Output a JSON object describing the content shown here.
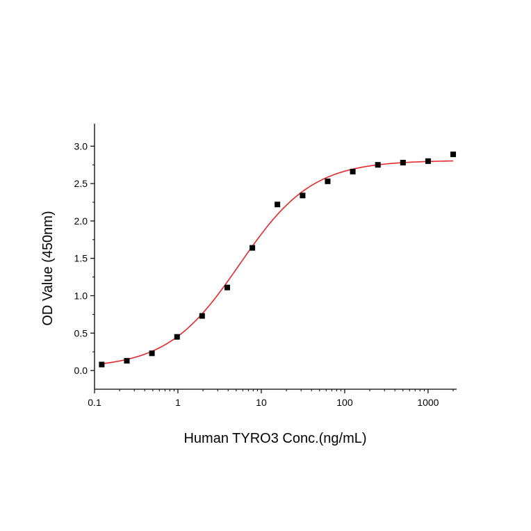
{
  "chart_data": {
    "type": "scatter",
    "title": "",
    "xlabel": "Human TYRO3 Conc.(ng/mL)",
    "ylabel": "OD Value (450nm)",
    "x_scale": "log",
    "xlim": [
      0.1,
      2200
    ],
    "ylim": [
      -0.25,
      3.3
    ],
    "x_ticks": [
      0.1,
      1,
      10,
      100,
      1000
    ],
    "x_tick_labels": [
      "0.1",
      "1",
      "10",
      "100",
      "1000"
    ],
    "y_ticks": [
      0,
      0.5,
      1,
      1.5,
      2,
      2.5,
      3
    ],
    "y_tick_labels": [
      "0.0",
      "0.5",
      "1.0",
      "1.5",
      "2.0",
      "2.5",
      "3.0"
    ],
    "grid": false,
    "series": [
      {
        "kind": "points",
        "color": "#000000",
        "marker": "square",
        "x": [
          0.122,
          0.244,
          0.488,
          0.977,
          1.95,
          3.91,
          7.81,
          15.6,
          31.3,
          62.5,
          125,
          250,
          500,
          1000,
          2000
        ],
        "y": [
          0.08,
          0.13,
          0.23,
          0.45,
          0.73,
          1.11,
          1.64,
          2.22,
          2.34,
          2.53,
          2.66,
          2.75,
          2.78,
          2.8,
          2.89
        ]
      },
      {
        "kind": "fit",
        "color": "#e8262b",
        "model": "4PL",
        "params": {
          "bottom": 0.03,
          "top": 2.81,
          "ec50": 5.5,
          "hill": 1.0
        }
      }
    ]
  }
}
